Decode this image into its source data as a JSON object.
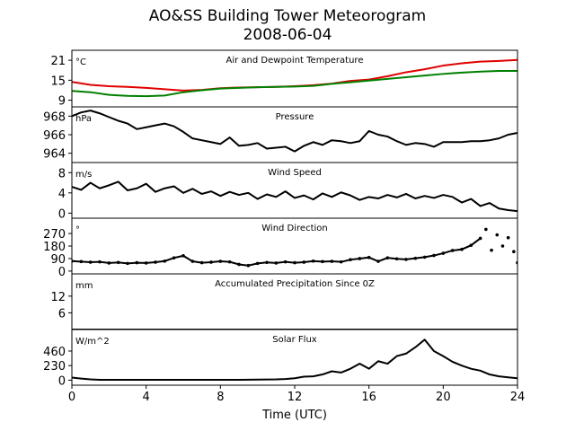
{
  "figure": {
    "title_line1": "AO&SS Building Tower Meteorogram",
    "title_line2": "2008-06-04",
    "xlabel": "Time (UTC)"
  },
  "chart_data": [
    {
      "type": "line",
      "title": "Air and Dewpoint Temperature",
      "unit_label": "°C",
      "xlim": [
        0,
        24
      ],
      "ylim": [
        7,
        24
      ],
      "yticks": [
        9,
        15,
        21
      ],
      "series": [
        {
          "color": "#e00000",
          "x": [
            0,
            1,
            2,
            3,
            4,
            5,
            6,
            7,
            8,
            9,
            10,
            11,
            12,
            13,
            14,
            15,
            16,
            17,
            18,
            19,
            20,
            21,
            22,
            23,
            24
          ],
          "y": [
            14.5,
            13.6,
            13.2,
            13.0,
            12.7,
            12.3,
            11.9,
            12.1,
            12.6,
            12.8,
            12.9,
            13.0,
            13.2,
            13.5,
            14.0,
            14.8,
            15.2,
            16.2,
            17.4,
            18.3,
            19.4,
            20.1,
            20.6,
            20.8,
            21.1
          ]
        },
        {
          "color": "#008000",
          "x": [
            0,
            1,
            2,
            3,
            4,
            5,
            6,
            7,
            8,
            9,
            10,
            11,
            12,
            13,
            14,
            15,
            16,
            17,
            18,
            19,
            20,
            21,
            22,
            23,
            24
          ],
          "y": [
            11.8,
            11.4,
            10.6,
            10.3,
            10.2,
            10.4,
            11.4,
            12.0,
            12.5,
            12.7,
            12.9,
            13.0,
            13.1,
            13.3,
            13.9,
            14.4,
            14.9,
            15.4,
            15.9,
            16.4,
            16.9,
            17.3,
            17.6,
            17.8,
            17.8
          ]
        }
      ]
    },
    {
      "type": "line",
      "title": "Pressure",
      "unit_label": "hPa",
      "xlim": [
        0,
        24
      ],
      "ylim": [
        963,
        969
      ],
      "yticks": [
        964,
        966,
        968
      ],
      "series": [
        {
          "color": "#000000",
          "x": [
            0,
            0.5,
            1,
            1.5,
            2,
            2.5,
            3,
            3.5,
            4,
            4.5,
            5,
            5.5,
            6,
            6.5,
            7,
            7.5,
            8,
            8.5,
            9,
            9.5,
            10,
            10.5,
            11,
            11.5,
            12,
            12.5,
            13,
            13.5,
            14,
            14.5,
            15,
            15.5,
            16,
            16.5,
            17,
            17.5,
            18,
            18.5,
            19,
            19.5,
            20,
            20.5,
            21,
            21.5,
            22,
            22.5,
            23,
            23.5,
            24
          ],
          "y": [
            968.0,
            968.4,
            968.6,
            968.3,
            967.9,
            967.5,
            967.2,
            966.6,
            966.8,
            967.0,
            967.2,
            966.9,
            966.3,
            965.6,
            965.4,
            965.2,
            965.0,
            965.7,
            964.8,
            964.9,
            965.1,
            964.5,
            964.6,
            964.7,
            964.2,
            964.8,
            965.2,
            964.9,
            965.4,
            965.3,
            965.1,
            965.3,
            966.4,
            966.0,
            965.8,
            965.3,
            964.9,
            965.1,
            965.0,
            964.7,
            965.2,
            965.2,
            965.2,
            965.3,
            965.3,
            965.4,
            965.6,
            966.0,
            966.2
          ]
        }
      ]
    },
    {
      "type": "line",
      "title": "Wind Speed",
      "unit_label": "m/s",
      "xlim": [
        0,
        24
      ],
      "ylim": [
        -1,
        10
      ],
      "yticks": [
        0,
        4,
        8
      ],
      "series": [
        {
          "color": "#000000",
          "x": [
            0,
            0.5,
            1,
            1.5,
            2,
            2.5,
            3,
            3.5,
            4,
            4.5,
            5,
            5.5,
            6,
            6.5,
            7,
            7.5,
            8,
            8.5,
            9,
            9.5,
            10,
            10.5,
            11,
            11.5,
            12,
            12.5,
            13,
            13.5,
            14,
            14.5,
            15,
            15.5,
            16,
            16.5,
            17,
            17.5,
            18,
            18.5,
            19,
            19.5,
            20,
            20.5,
            21,
            21.5,
            22,
            22.5,
            23,
            23.5,
            24
          ],
          "y": [
            5.2,
            4.6,
            6.0,
            4.9,
            5.5,
            6.2,
            4.5,
            4.9,
            5.8,
            4.2,
            4.9,
            5.3,
            4.0,
            4.8,
            3.8,
            4.3,
            3.4,
            4.2,
            3.6,
            4.0,
            2.8,
            3.7,
            3.2,
            4.3,
            3.0,
            3.5,
            2.7,
            3.9,
            3.2,
            4.1,
            3.5,
            2.6,
            3.2,
            2.9,
            3.6,
            3.1,
            3.8,
            2.9,
            3.4,
            3.0,
            3.6,
            3.2,
            2.1,
            2.8,
            1.4,
            2.0,
            0.9,
            0.6,
            0.4
          ]
        }
      ]
    },
    {
      "type": "scatter",
      "title": "Wind Direction",
      "unit_label": "°",
      "xlim": [
        0,
        24
      ],
      "ylim": [
        -20,
        380
      ],
      "yticks": [
        0,
        90,
        180,
        270
      ],
      "series": [
        {
          "color": "#000000",
          "x": [
            0,
            0.5,
            1,
            1.5,
            2,
            2.5,
            3,
            3.5,
            4,
            4.5,
            5,
            5.5,
            6,
            6.5,
            7,
            7.5,
            8,
            8.5,
            9,
            9.5,
            10,
            10.5,
            11,
            11.5,
            12,
            12.5,
            13,
            13.5,
            14,
            14.5,
            15,
            15.5,
            16,
            16.5,
            17,
            17.5,
            18,
            18.5,
            19,
            19.5,
            20,
            20.5,
            21,
            21.5,
            22,
            22.3,
            22.6,
            22.9,
            23.2,
            23.5,
            23.8,
            24
          ],
          "y": [
            72,
            68,
            64,
            66,
            58,
            62,
            55,
            60,
            58,
            64,
            72,
            95,
            110,
            70,
            60,
            64,
            70,
            66,
            48,
            40,
            55,
            62,
            58,
            66,
            60,
            64,
            72,
            68,
            70,
            66,
            82,
            90,
            98,
            70,
            95,
            88,
            84,
            92,
            100,
            112,
            128,
            148,
            156,
            185,
            235,
            300,
            150,
            260,
            180,
            240,
            140,
            60
          ]
        }
      ]
    },
    {
      "type": "line",
      "title": "Accumulated Precipitation Since 0Z",
      "unit_label": "mm",
      "xlim": [
        0,
        24
      ],
      "ylim": [
        0,
        20
      ],
      "yticks": [
        6,
        12
      ],
      "series": [
        {
          "color": "#000000",
          "x": [
            0,
            24
          ],
          "y": [
            0,
            0
          ]
        }
      ]
    },
    {
      "type": "line",
      "title": "Solar Flux",
      "unit_label": "W/m^2",
      "xlim": [
        0,
        24
      ],
      "ylim": [
        -80,
        800
      ],
      "yticks": [
        0,
        230,
        460
      ],
      "series": [
        {
          "color": "#000000",
          "x": [
            0,
            0.5,
            1,
            1.5,
            2,
            3,
            4,
            5,
            6,
            7,
            8,
            9,
            10,
            11,
            11.5,
            12,
            12.5,
            13,
            13.5,
            14,
            14.5,
            15,
            15.5,
            16,
            16.5,
            17,
            17.5,
            18,
            18.5,
            19,
            19.5,
            20,
            20.5,
            21,
            21.5,
            22,
            22.5,
            23,
            23.5,
            24
          ],
          "y": [
            40,
            25,
            12,
            6,
            5,
            5,
            5,
            5,
            5,
            5,
            5,
            5,
            8,
            12,
            18,
            30,
            55,
            60,
            90,
            140,
            120,
            180,
            260,
            180,
            300,
            260,
            380,
            420,
            520,
            640,
            460,
            380,
            290,
            230,
            180,
            150,
            90,
            60,
            45,
            30
          ]
        }
      ]
    }
  ],
  "xaxis": {
    "ticks": [
      0,
      4,
      8,
      12,
      16,
      20,
      24
    ]
  }
}
